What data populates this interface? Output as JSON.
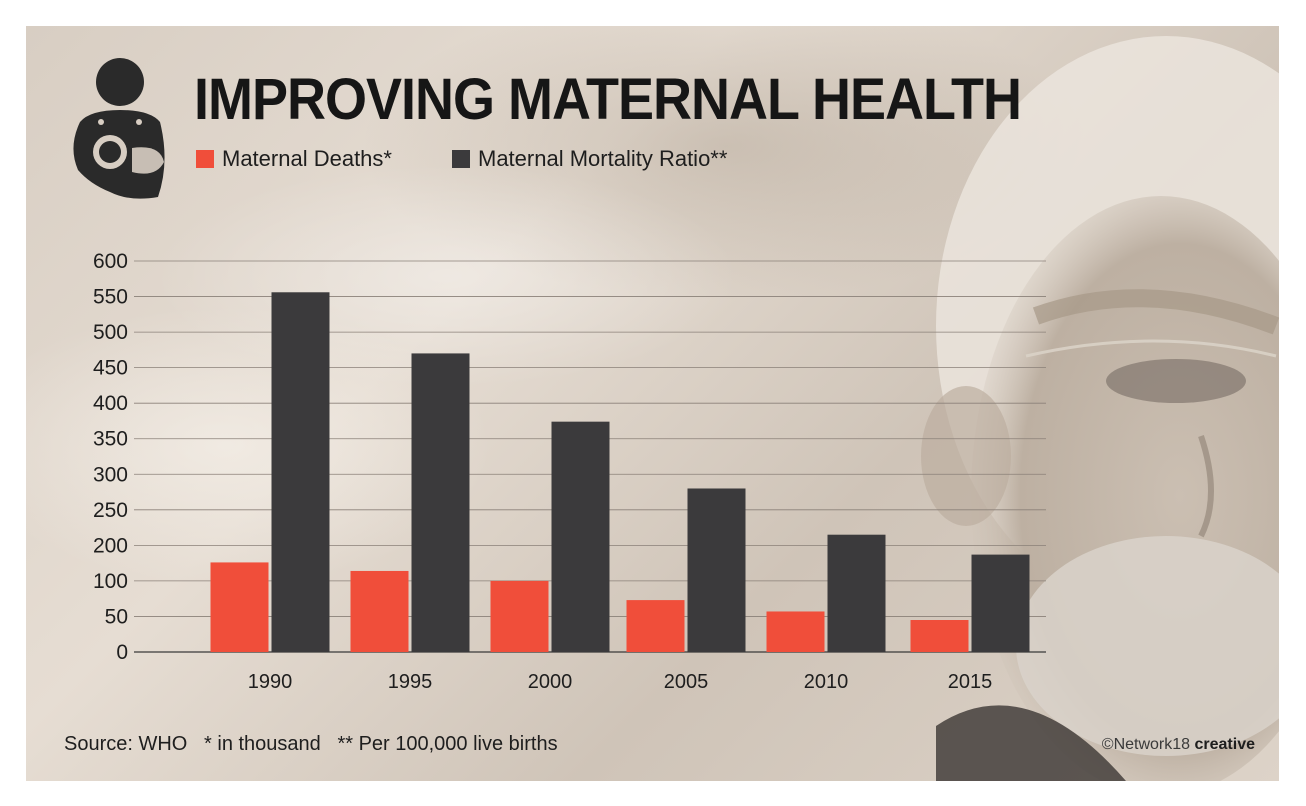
{
  "title": "IMPROVING MATERNAL HEALTH",
  "legend": [
    {
      "label": "Maternal Deaths*",
      "color": "#f04e3a"
    },
    {
      "label": "Maternal Mortality Ratio**",
      "color": "#3b3a3c"
    }
  ],
  "icons": {
    "logo": "breastfeeding-mother-icon"
  },
  "footer": {
    "source": "Source: WHO   * in thousand   ** Per 100,000 live births",
    "credit_prefix": "©Network18 ",
    "credit_brand": "creative"
  },
  "chart_data": {
    "type": "bar",
    "categories": [
      "1990",
      "1995",
      "2000",
      "2005",
      "2010",
      "2015"
    ],
    "series": [
      {
        "name": "Maternal Deaths*",
        "values": [
          152,
          128,
          100,
          73,
          57,
          45
        ],
        "color": "#f04e3a"
      },
      {
        "name": "Maternal Mortality Ratio**",
        "values": [
          556,
          470,
          374,
          280,
          215,
          174
        ],
        "color": "#3b3a3c"
      }
    ],
    "yticks": [
      "0",
      "50",
      "100",
      "200",
      "250",
      "300",
      "350",
      "400",
      "450",
      "500",
      "550",
      "600"
    ],
    "ylim": [
      0,
      600
    ],
    "grid": true,
    "legend": "top-left"
  }
}
